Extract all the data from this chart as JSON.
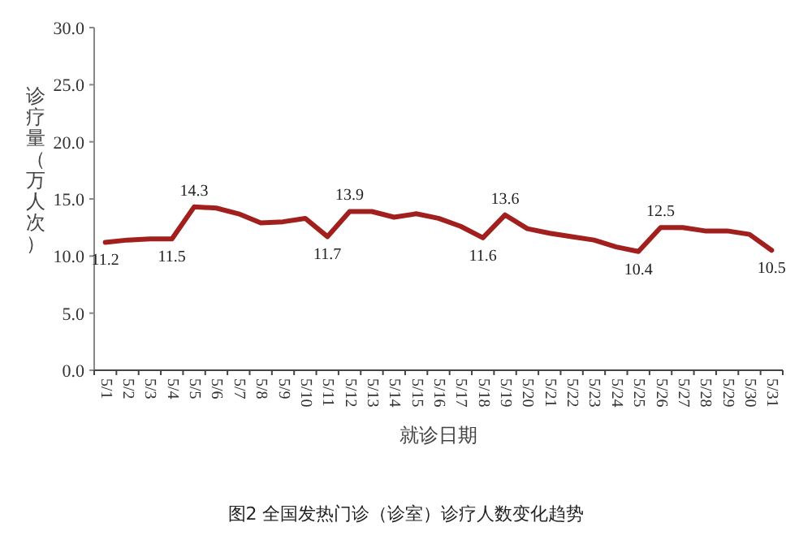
{
  "chart_data": {
    "type": "line",
    "xlabel": "就诊日期",
    "ylabel": "诊疗量（万人次）",
    "categories": [
      "5/1",
      "5/2",
      "5/3",
      "5/4",
      "5/5",
      "5/6",
      "5/7",
      "5/8",
      "5/9",
      "5/10",
      "5/11",
      "5/12",
      "5/13",
      "5/14",
      "5/15",
      "5/16",
      "5/17",
      "5/18",
      "5/19",
      "5/20",
      "5/21",
      "5/22",
      "5/23",
      "5/24",
      "5/25",
      "5/26",
      "5/27",
      "5/28",
      "5/29",
      "5/30",
      "5/31"
    ],
    "series": [
      {
        "color": "#a11f1c",
        "values": [
          11.2,
          11.4,
          11.5,
          11.5,
          14.3,
          14.2,
          13.7,
          12.9,
          13.0,
          13.3,
          11.7,
          13.9,
          13.9,
          13.4,
          13.7,
          13.3,
          12.6,
          11.6,
          13.6,
          12.4,
          12.0,
          11.7,
          11.4,
          10.8,
          10.4,
          12.5,
          12.5,
          12.2,
          12.2,
          11.9,
          10.5
        ],
        "value_labels": [
          "11.2",
          null,
          null,
          "11.5",
          "14.3",
          null,
          null,
          null,
          null,
          null,
          "11.7",
          "13.9",
          null,
          null,
          null,
          null,
          null,
          "11.6",
          "13.6",
          null,
          null,
          null,
          null,
          null,
          "10.4",
          "12.5",
          null,
          null,
          null,
          null,
          "10.5"
        ]
      }
    ],
    "ylim": [
      0,
      30
    ],
    "yticks": [
      {
        "value": 0,
        "label": "0.0"
      },
      {
        "value": 5,
        "label": "5.0"
      },
      {
        "value": 10,
        "label": "10.0"
      },
      {
        "value": 15,
        "label": "15.0"
      },
      {
        "value": 20,
        "label": "20.0"
      },
      {
        "value": 25,
        "label": "25.0"
      },
      {
        "value": 30,
        "label": "30.0"
      }
    ],
    "annotations": [
      "图2 全国发热门诊（诊室）诊疗人数变化趋势"
    ]
  }
}
